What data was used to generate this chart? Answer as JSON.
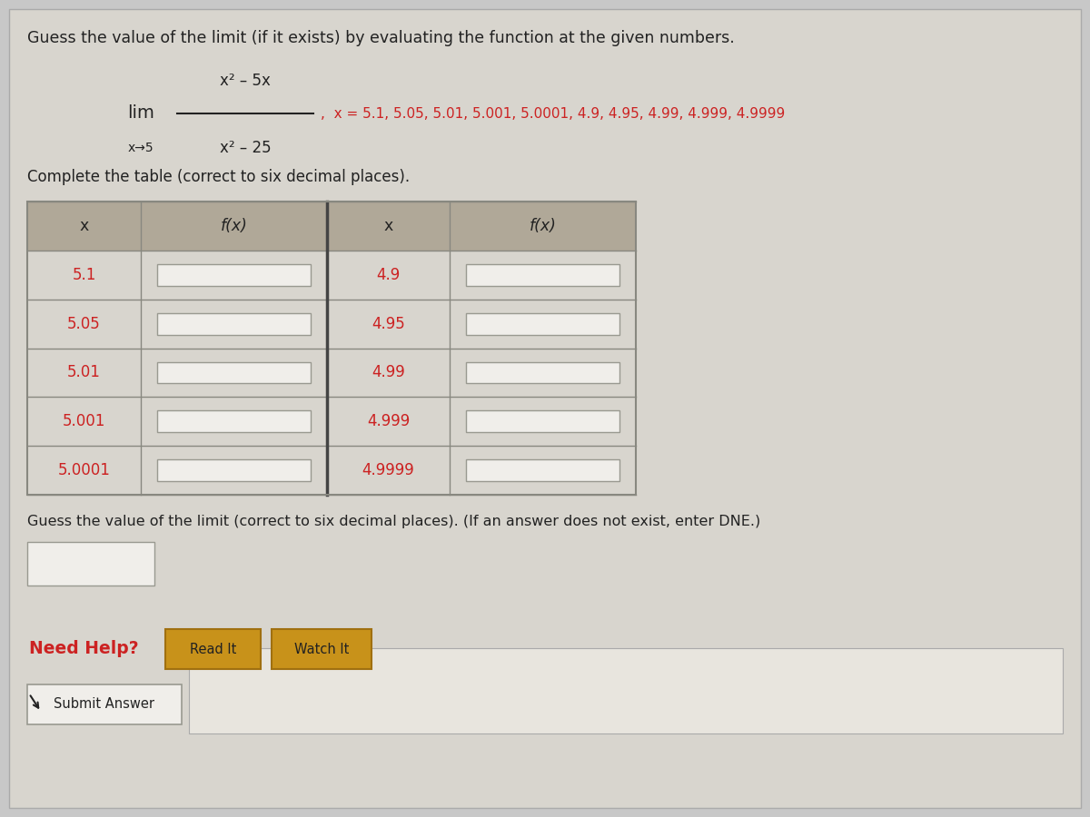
{
  "bg_color": "#c8c8c8",
  "panel_color": "#d8d5ce",
  "white": "#ffffff",
  "black": "#1a1a1a",
  "dark_text": "#222222",
  "red_text": "#cc2222",
  "orange_btn_face": "#c8921a",
  "orange_btn_edge": "#a07010",
  "title_text": "Guess the value of the limit (if it exists) by evaluating the function at the given numbers.",
  "x_values_text": "x = 5.1, 5.05, 5.01, 5.001, 5.0001, 4.9, 4.95, 4.99, 4.999, 4.9999",
  "table_instruction": "Complete the table (correct to six decimal places).",
  "col1_header": "x",
  "col2_header": "f(x)",
  "col3_header": "x",
  "col4_header": "f(x)",
  "left_x": [
    "5.1",
    "5.05",
    "5.01",
    "5.001",
    "5.0001"
  ],
  "right_x": [
    "4.9",
    "4.95",
    "4.99",
    "4.999",
    "4.9999"
  ],
  "guess_text": "Guess the value of the limit (correct to six decimal places). (If an answer does not exist, enter DNE.)",
  "need_help_text": "Need Help?",
  "read_it_text": "Read It",
  "watch_it_text": "Watch It",
  "submit_text": "Submit Answer",
  "table_header_bg": "#b0a898",
  "table_row_bg": "#d8d5ce",
  "table_border": "#888880",
  "input_box_color": "#f0eeea",
  "input_box_edge": "#999990",
  "mid_divider": "#444444"
}
